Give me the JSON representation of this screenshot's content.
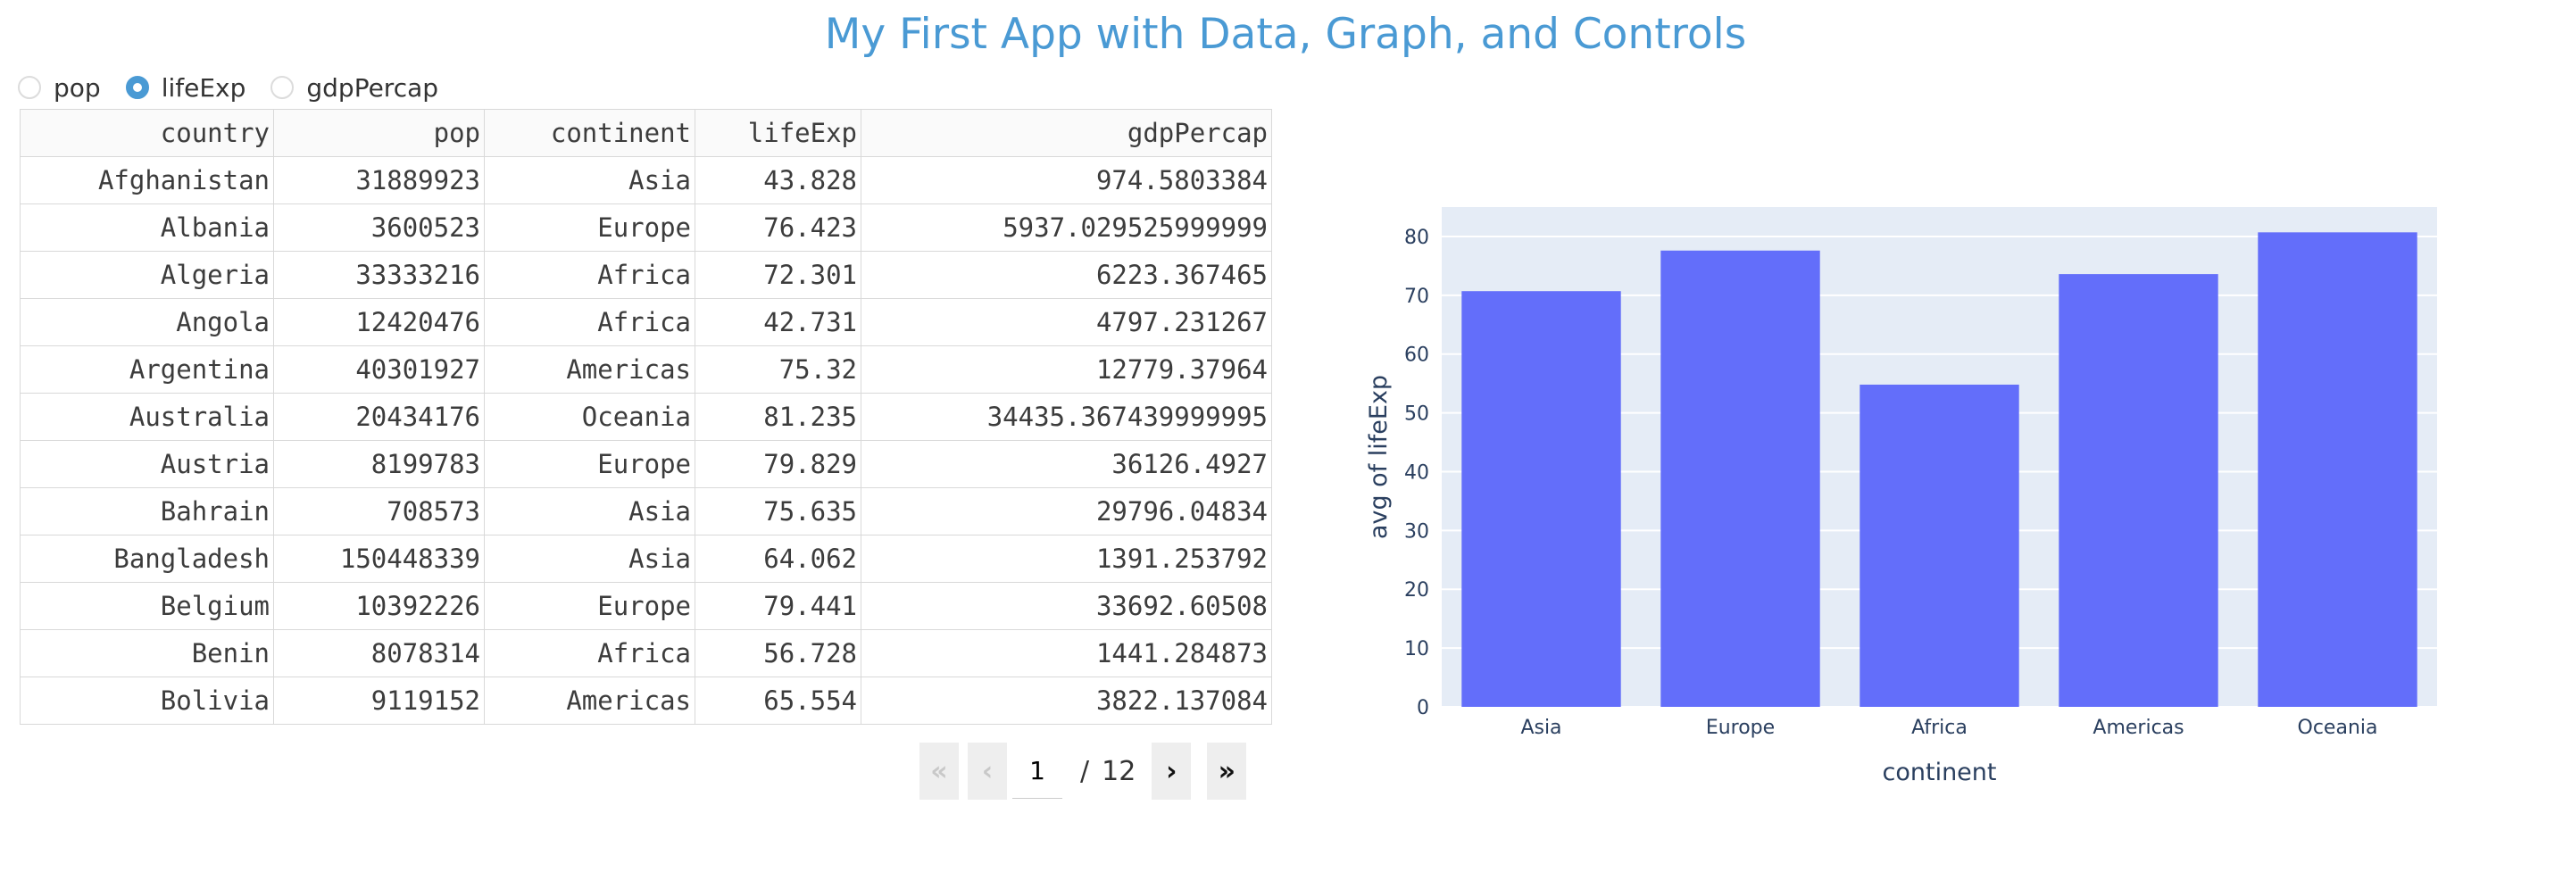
{
  "title": "My First App with Data, Graph, and Controls",
  "radio": {
    "options": [
      "pop",
      "lifeExp",
      "gdpPercap"
    ],
    "selected": "lifeExp"
  },
  "table": {
    "columns": [
      "country",
      "pop",
      "continent",
      "lifeExp",
      "gdpPercap"
    ],
    "rows": [
      [
        "Afghanistan",
        "31889923",
        "Asia",
        "43.828",
        "974.5803384"
      ],
      [
        "Albania",
        "3600523",
        "Europe",
        "76.423",
        "5937.029525999999"
      ],
      [
        "Algeria",
        "33333216",
        "Africa",
        "72.301",
        "6223.367465"
      ],
      [
        "Angola",
        "12420476",
        "Africa",
        "42.731",
        "4797.231267"
      ],
      [
        "Argentina",
        "40301927",
        "Americas",
        "75.32",
        "12779.37964"
      ],
      [
        "Australia",
        "20434176",
        "Oceania",
        "81.235",
        "34435.367439999995"
      ],
      [
        "Austria",
        "8199783",
        "Europe",
        "79.829",
        "36126.4927"
      ],
      [
        "Bahrain",
        "708573",
        "Asia",
        "75.635",
        "29796.04834"
      ],
      [
        "Bangladesh",
        "150448339",
        "Asia",
        "64.062",
        "1391.253792"
      ],
      [
        "Belgium",
        "10392226",
        "Europe",
        "79.441",
        "33692.60508"
      ],
      [
        "Benin",
        "8078314",
        "Africa",
        "56.728",
        "1441.284873"
      ],
      [
        "Bolivia",
        "9119152",
        "Americas",
        "65.554",
        "3822.137084"
      ]
    ]
  },
  "pager": {
    "current": "1",
    "separator": "/",
    "total": "12",
    "first_glyph": "«",
    "prev_glyph": "‹",
    "next_glyph": "›",
    "last_glyph": "»"
  },
  "chart_data": {
    "type": "bar",
    "categories": [
      "Asia",
      "Europe",
      "Africa",
      "Americas",
      "Oceania"
    ],
    "values": [
      70.7,
      77.6,
      54.8,
      73.6,
      80.7
    ],
    "xlabel": "continent",
    "ylabel": "avg of lifeExp",
    "ylim": [
      0,
      85
    ],
    "yticks": [
      0,
      10,
      20,
      30,
      40,
      50,
      60,
      70,
      80
    ],
    "bar_color": "#636efa",
    "plot_bg": "#e5ecf6",
    "grid": true
  },
  "colors": {
    "title": "#4a9ad4",
    "radio_accent": "#4a9ad4"
  }
}
